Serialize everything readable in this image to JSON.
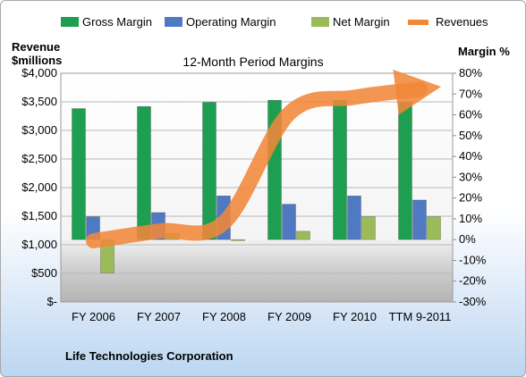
{
  "chart_data": {
    "type": "bar",
    "title": "12-Month Period Margins",
    "ylabel_left": [
      "Revenue",
      "$millions"
    ],
    "ylabel_right": "Margin %",
    "footer": "Life Technologies Corporation",
    "categories": [
      "FY 2006",
      "FY 2007",
      "FY 2008",
      "FY 2009",
      "FY 2010",
      "TTM 9-2011"
    ],
    "left_axis": {
      "ylim": [
        0,
        4000
      ],
      "ticks": [
        0,
        500,
        1000,
        1500,
        2000,
        2500,
        3000,
        3500,
        4000
      ],
      "tick_labels": [
        "$-",
        "$500",
        "$1,000",
        "$1,500",
        "$2,000",
        "$2,500",
        "$3,000",
        "$3,500",
        "$4,000"
      ]
    },
    "right_axis": {
      "ylim": [
        -30,
        80
      ],
      "ticks": [
        -30,
        -20,
        -10,
        0,
        10,
        20,
        30,
        40,
        50,
        60,
        70,
        80
      ],
      "tick_labels": [
        "-30%",
        "-20%",
        "-10%",
        "0%",
        "10%",
        "20%",
        "30%",
        "40%",
        "50%",
        "60%",
        "70%",
        "80%"
      ]
    },
    "series": [
      {
        "name": "Gross Margin",
        "type": "bar",
        "axis": "right",
        "color": "#1e9e50",
        "values": [
          63,
          64,
          66,
          67,
          67,
          66
        ]
      },
      {
        "name": "Operating Margin",
        "type": "bar",
        "axis": "right",
        "color": "#4f7ac2",
        "values": [
          11,
          13,
          21,
          17,
          21,
          19
        ]
      },
      {
        "name": "Net Margin",
        "type": "bar",
        "axis": "right",
        "color": "#9bbb59",
        "values": [
          -16,
          3,
          -0.5,
          4,
          11,
          11
        ]
      },
      {
        "name": "Revenues",
        "type": "line",
        "axis": "left",
        "color": "#f0883a",
        "values": [
          1070,
          1240,
          1390,
          3300,
          3580,
          3720
        ]
      }
    ]
  }
}
